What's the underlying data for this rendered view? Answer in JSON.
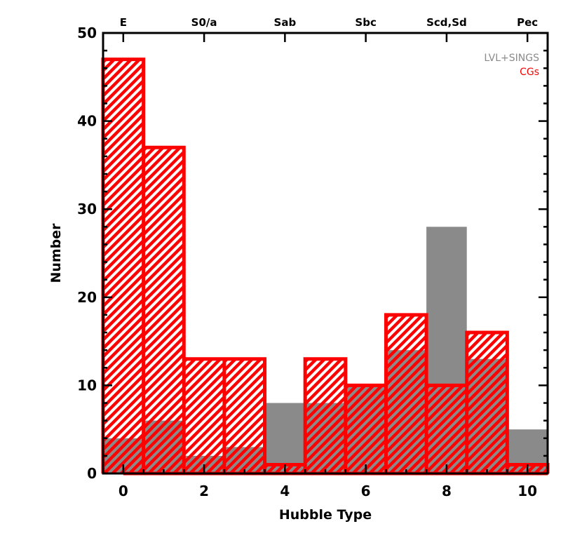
{
  "chart_data": {
    "type": "histogram",
    "xlabel": "Hubble Type",
    "ylabel": "Number",
    "xlim": [
      -0.5,
      10.5
    ],
    "ylim": [
      0,
      50
    ],
    "x_ticks": [
      0,
      2,
      4,
      6,
      8,
      10
    ],
    "y_ticks": [
      0,
      10,
      20,
      30,
      40,
      50
    ],
    "top_ticks": [
      {
        "x": 0,
        "label": "E"
      },
      {
        "x": 2,
        "label": "S0/a"
      },
      {
        "x": 4,
        "label": "Sab"
      },
      {
        "x": 6,
        "label": "Sbc"
      },
      {
        "x": 8,
        "label": "Scd,Sd"
      },
      {
        "x": 10,
        "label": "Pec"
      }
    ],
    "bin_width": 1,
    "x": [
      0,
      1,
      2,
      3,
      4,
      5,
      6,
      7,
      8,
      9,
      10
    ],
    "series": [
      {
        "name": "LVL+SINGS",
        "color": "#8a8a8a",
        "style": "filled",
        "values": [
          4,
          6,
          2,
          3,
          8,
          8,
          10,
          14,
          28,
          13,
          5
        ]
      },
      {
        "name": "CGs",
        "color": "#ff0000",
        "style": "hatched-outline",
        "values": [
          47,
          37,
          13,
          13,
          1,
          13,
          10,
          18,
          10,
          16,
          1
        ]
      }
    ],
    "legend": {
      "placement": "top-right",
      "entries": [
        "LVL+SINGS",
        "CGs"
      ]
    }
  }
}
